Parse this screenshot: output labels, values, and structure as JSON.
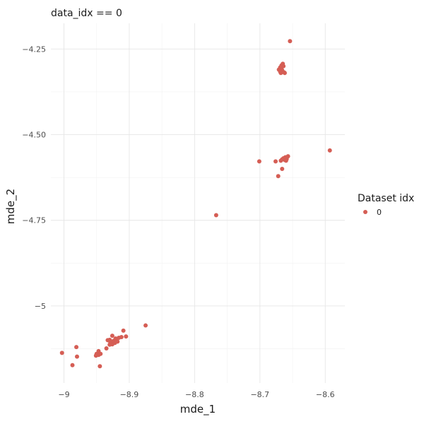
{
  "chart_data": {
    "type": "scatter",
    "title": "data_idx == 0",
    "xlabel": "mde_1",
    "ylabel": "mde_2",
    "xlim": [
      -9.02,
      -8.57
    ],
    "ylim": [
      -5.225,
      -4.175
    ],
    "x_ticks": [
      -9.0,
      -8.9,
      -8.8,
      -8.7,
      -8.6
    ],
    "x_tick_labels": [
      "−9",
      "−8.9",
      "−8.8",
      "−8.7",
      "−8.6"
    ],
    "y_ticks": [
      -4.25,
      -4.5,
      -4.75,
      -5.0
    ],
    "y_tick_labels": [
      "−4.25",
      "−4.50",
      "−4.75",
      "−5"
    ],
    "grid": true,
    "legend": {
      "title": "Dataset idx",
      "position": "right",
      "entries": [
        "0"
      ]
    },
    "series": [
      {
        "name": "0",
        "color": "#d55e55",
        "points": [
          [
            -8.654,
            -4.227
          ],
          [
            -8.665,
            -4.293
          ],
          [
            -8.667,
            -4.298
          ],
          [
            -8.664,
            -4.3
          ],
          [
            -8.669,
            -4.304
          ],
          [
            -8.667,
            -4.308
          ],
          [
            -8.671,
            -4.31
          ],
          [
            -8.666,
            -4.312
          ],
          [
            -8.669,
            -4.316
          ],
          [
            -8.663,
            -4.318
          ],
          [
            -8.662,
            -4.32
          ],
          [
            -8.668,
            -4.32
          ],
          [
            -8.593,
            -4.546
          ],
          [
            -8.657,
            -4.563
          ],
          [
            -8.661,
            -4.566
          ],
          [
            -8.664,
            -4.569
          ],
          [
            -8.659,
            -4.571
          ],
          [
            -8.666,
            -4.572
          ],
          [
            -8.662,
            -4.574
          ],
          [
            -8.668,
            -4.576
          ],
          [
            -8.66,
            -4.576
          ],
          [
            -8.701,
            -4.578
          ],
          [
            -8.676,
            -4.578
          ],
          [
            -8.666,
            -4.6
          ],
          [
            -8.672,
            -4.621
          ],
          [
            -8.767,
            -4.735
          ],
          [
            -8.875,
            -5.057
          ],
          [
            -8.909,
            -5.072
          ],
          [
            -8.905,
            -5.089
          ],
          [
            -8.912,
            -5.091
          ],
          [
            -8.916,
            -5.093
          ],
          [
            -8.921,
            -5.095
          ],
          [
            -8.926,
            -5.087
          ],
          [
            -8.93,
            -5.099
          ],
          [
            -8.933,
            -5.1
          ],
          [
            -8.924,
            -5.102
          ],
          [
            -8.918,
            -5.104
          ],
          [
            -8.929,
            -5.106
          ],
          [
            -8.922,
            -5.108
          ],
          [
            -8.926,
            -5.112
          ],
          [
            -8.93,
            -5.113
          ],
          [
            -8.935,
            -5.124
          ],
          [
            -8.947,
            -5.132
          ],
          [
            -8.981,
            -5.12
          ],
          [
            -9.003,
            -5.137
          ],
          [
            -8.95,
            -5.14
          ],
          [
            -8.944,
            -5.14
          ],
          [
            -8.947,
            -5.143
          ],
          [
            -8.951,
            -5.145
          ],
          [
            -8.98,
            -5.148
          ],
          [
            -8.987,
            -5.173
          ],
          [
            -8.945,
            -5.176
          ]
        ]
      }
    ]
  }
}
